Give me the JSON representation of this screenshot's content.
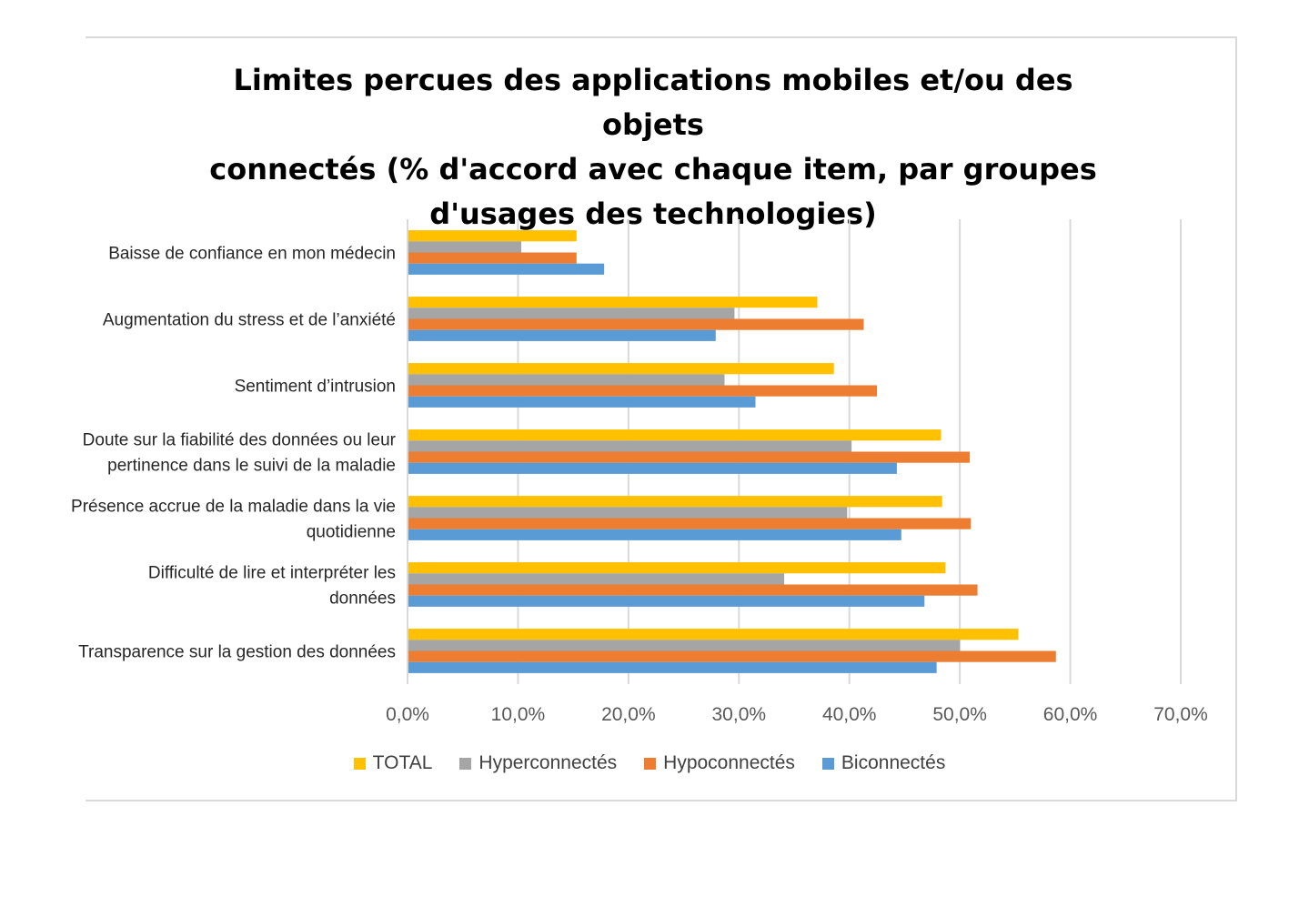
{
  "chart_data": {
    "type": "bar",
    "orientation": "horizontal",
    "title": "Limites percues des applications mobiles et/ou des objets connectés (% d'accord avec chaque item, par groupes d'usages des technologies)",
    "title_lines": [
      "Limites percues des applications mobiles et/ou des objets",
      "connectés (% d'accord avec chaque item, par groupes",
      "d'usages des technologies)"
    ],
    "categories": [
      [
        "Baisse de confiance en mon médecin"
      ],
      [
        "Augmentation du stress et de l’anxiété"
      ],
      [
        "Sentiment d’intrusion"
      ],
      [
        "Doute sur la fiabilité des données ou leur",
        "pertinence dans le suivi de la maladie"
      ],
      [
        "Présence accrue de la maladie dans la vie",
        "quotidienne"
      ],
      [
        "Difficulté de lire et interpréter les",
        "données"
      ],
      [
        "Transparence sur la gestion des données"
      ]
    ],
    "series": [
      {
        "name": "TOTAL",
        "color": "#FFC000",
        "values": [
          15.3,
          37.1,
          38.6,
          48.3,
          48.4,
          48.7,
          55.3
        ]
      },
      {
        "name": "Hyperconnectés",
        "color": "#A5A5A5",
        "values": [
          10.3,
          29.6,
          28.7,
          40.2,
          39.8,
          34.1,
          50.0
        ]
      },
      {
        "name": "Hypoconnectés",
        "color": "#ED7D31",
        "values": [
          15.3,
          41.3,
          42.5,
          50.9,
          51.0,
          51.6,
          58.7
        ]
      },
      {
        "name": "Biconnectés",
        "color": "#5B9BD5",
        "values": [
          17.8,
          27.9,
          31.5,
          44.3,
          44.7,
          46.8,
          47.9
        ]
      }
    ],
    "xlim": [
      0,
      70
    ],
    "xticks": [
      "0,0%",
      "10,0%",
      "20,0%",
      "30,0%",
      "40,0%",
      "50,0%",
      "60,0%",
      "70,0%"
    ],
    "grid": true,
    "legend_position": "bottom"
  }
}
